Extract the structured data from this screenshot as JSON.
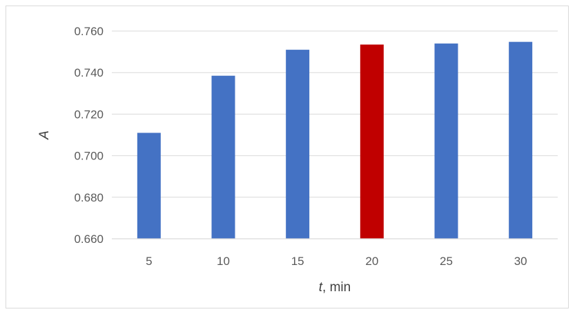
{
  "chart_data": {
    "type": "bar",
    "title": "",
    "xlabel_italic": "t",
    "xlabel_rest": ", min",
    "ylabel": "A",
    "categories": [
      "5",
      "10",
      "15",
      "20",
      "25",
      "30"
    ],
    "values": [
      0.711,
      0.7385,
      0.751,
      0.7535,
      0.754,
      0.7548
    ],
    "colors": [
      "#4472C4",
      "#4472C4",
      "#4472C4",
      "#C00000",
      "#4472C4",
      "#4472C4"
    ],
    "ylim": [
      0.66,
      0.76
    ],
    "yticks": [
      "0.660",
      "0.680",
      "0.700",
      "0.720",
      "0.740",
      "0.760"
    ],
    "grid": true,
    "legend": "none"
  }
}
